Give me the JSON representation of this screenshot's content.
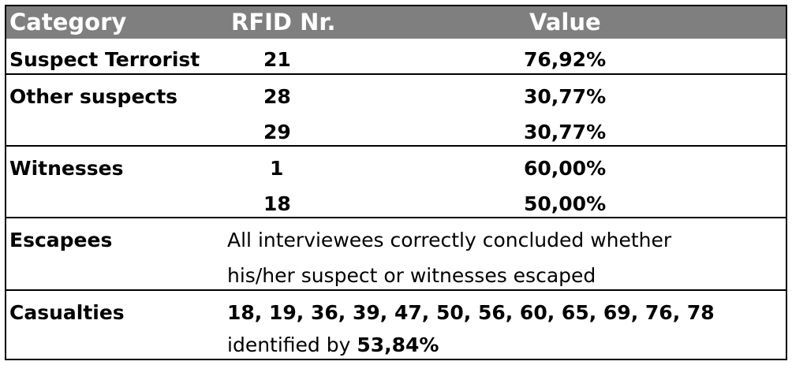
{
  "header": {
    "category": "Category",
    "rfid": "RFID Nr.",
    "value": "Value"
  },
  "rows": {
    "suspect_terrorist": {
      "category": "Suspect Terrorist",
      "rfid": "21",
      "value": "76,92%"
    },
    "other_suspects": {
      "category": "Other suspects",
      "entries": [
        {
          "rfid": "28",
          "value": "30,77%"
        },
        {
          "rfid": "29",
          "value": "30,77%"
        }
      ]
    },
    "witnesses": {
      "category": "Witnesses",
      "entries": [
        {
          "rfid": "1",
          "value": "60,00%"
        },
        {
          "rfid": "18",
          "value": "50,00%"
        }
      ]
    },
    "escapees": {
      "category": "Escapees",
      "line1": "All interviewees correctly concluded whether",
      "line2": "his/her suspect or witnesses escaped"
    },
    "casualties": {
      "category": "Casualties",
      "ids": "18, 19, 36, 39, 47, 50, 56, 60, 65, 69, 76, 78",
      "identified_prefix": "identified by ",
      "identified_value": "53,84%"
    }
  },
  "colors": {
    "header_bg": "#7f7f7f",
    "header_text": "#ffffff"
  }
}
